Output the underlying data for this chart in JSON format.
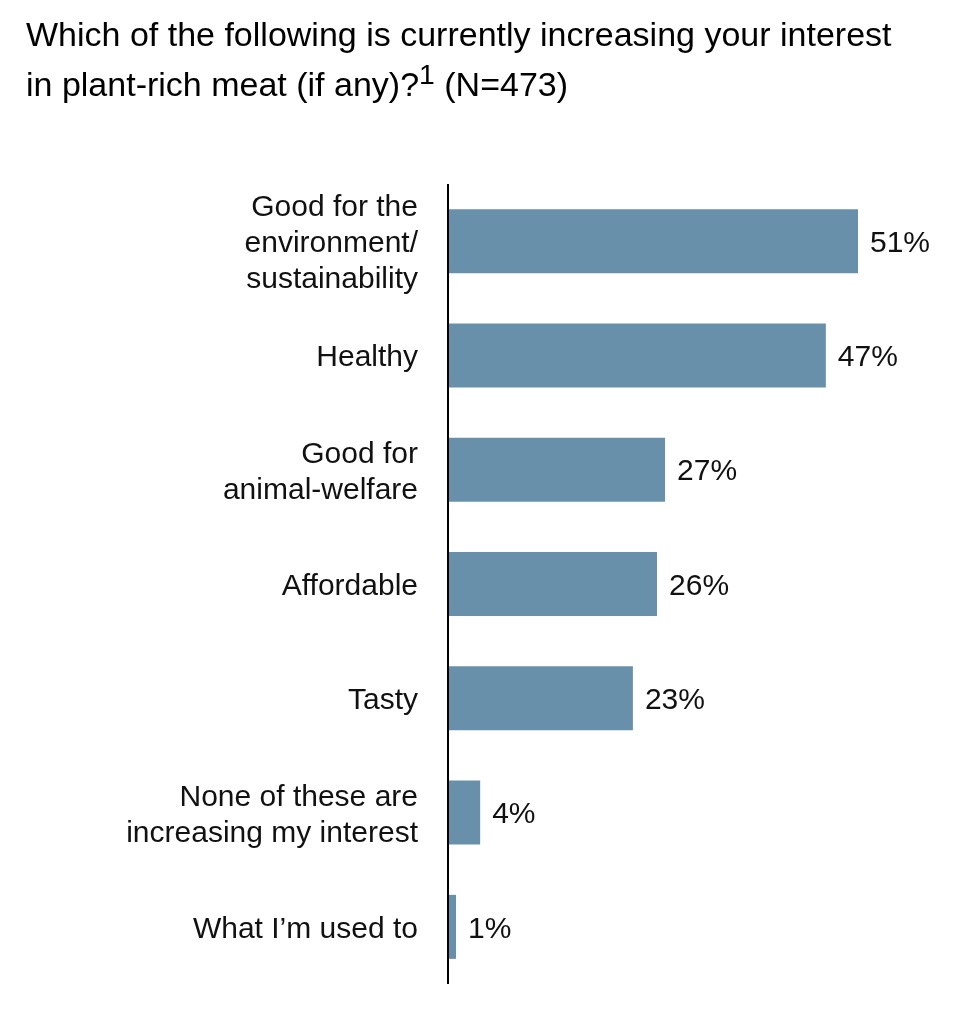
{
  "chart_data": {
    "type": "bar",
    "orientation": "horizontal",
    "title": "Which of the following is currently increasing your interest in plant-rich meat (if any)?$^{1}$ (N=473)",
    "categories": [
      "Good for the environment/ sustainability",
      "Healthy",
      "Good for animal-welfare",
      "Affordable",
      "Tasty",
      "None of these are increasing my interest",
      "What I’m used to"
    ],
    "values": [
      51,
      47,
      27,
      26,
      23,
      4,
      1
    ],
    "value_labels": [
      "51%",
      "47%",
      "27%",
      "26%",
      "23%",
      "4%",
      "1%"
    ],
    "color": "#6990aa"
  }
}
